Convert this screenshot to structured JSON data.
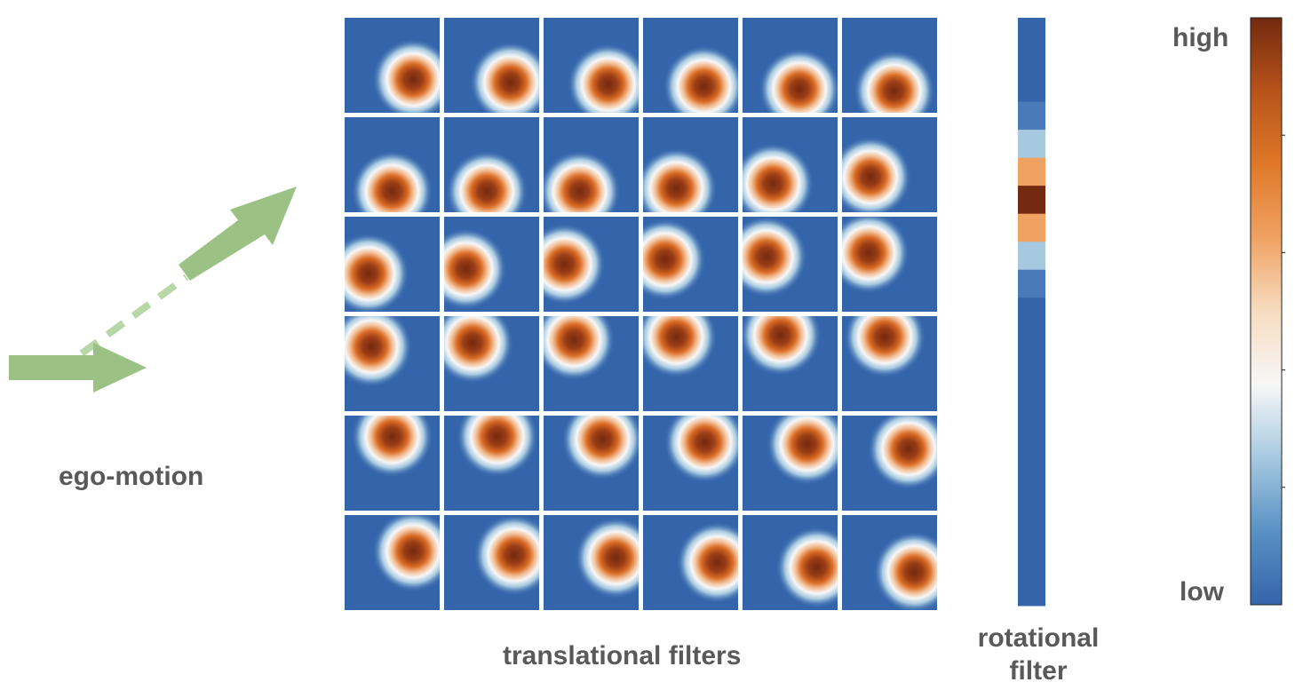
{
  "labels": {
    "ego_motion": "ego-motion",
    "translational": "translational filters",
    "rotational_line1": "rotational",
    "rotational_line2": "filter",
    "high": "high",
    "low": "low"
  },
  "colors": {
    "arrow_green": "#9bc284",
    "arrow_dashed": "#b8d7a6",
    "background_blue": "#3465ab",
    "text_gray": "#595959"
  },
  "filter_grid": {
    "rows": 6,
    "cols": 6,
    "blob_centers": [
      [
        [
          0.72,
          0.65
        ],
        [
          0.7,
          0.68
        ],
        [
          0.68,
          0.7
        ],
        [
          0.64,
          0.72
        ],
        [
          0.6,
          0.75
        ],
        [
          0.55,
          0.77
        ]
      ],
      [
        [
          0.5,
          0.78
        ],
        [
          0.45,
          0.78
        ],
        [
          0.38,
          0.78
        ],
        [
          0.35,
          0.75
        ],
        [
          0.32,
          0.7
        ],
        [
          0.3,
          0.63
        ]
      ],
      [
        [
          0.25,
          0.6
        ],
        [
          0.23,
          0.55
        ],
        [
          0.22,
          0.5
        ],
        [
          0.23,
          0.45
        ],
        [
          0.25,
          0.42
        ],
        [
          0.28,
          0.38
        ]
      ],
      [
        [
          0.28,
          0.32
        ],
        [
          0.3,
          0.28
        ],
        [
          0.32,
          0.25
        ],
        [
          0.35,
          0.22
        ],
        [
          0.4,
          0.2
        ],
        [
          0.45,
          0.22
        ]
      ],
      [
        [
          0.5,
          0.22
        ],
        [
          0.56,
          0.22
        ],
        [
          0.62,
          0.25
        ],
        [
          0.65,
          0.28
        ],
        [
          0.68,
          0.3
        ],
        [
          0.7,
          0.35
        ]
      ],
      [
        [
          0.72,
          0.38
        ],
        [
          0.74,
          0.42
        ],
        [
          0.76,
          0.45
        ],
        [
          0.78,
          0.5
        ],
        [
          0.78,
          0.55
        ],
        [
          0.76,
          0.6
        ]
      ]
    ]
  },
  "rotational_filter": {
    "cells": [
      "#3465ab",
      "#3465ab",
      "#3465ab",
      "#4a7ab8",
      "#a6c9e0",
      "#f0a263",
      "#73290f",
      "#f0a263",
      "#a6c9e0",
      "#4a7ab8",
      "#3465ab",
      "#3465ab",
      "#3465ab",
      "#3465ab",
      "#3465ab",
      "#3465ab",
      "#3465ab",
      "#3465ab",
      "#3465ab",
      "#3465ab",
      "#3465ab"
    ]
  },
  "colorbar": {
    "stops": [
      "#3465ab",
      "#5891c4",
      "#a6c9e0",
      "#f7f7f7",
      "#f7dcc0",
      "#f0a263",
      "#e07828",
      "#b8531a",
      "#73290f"
    ]
  }
}
